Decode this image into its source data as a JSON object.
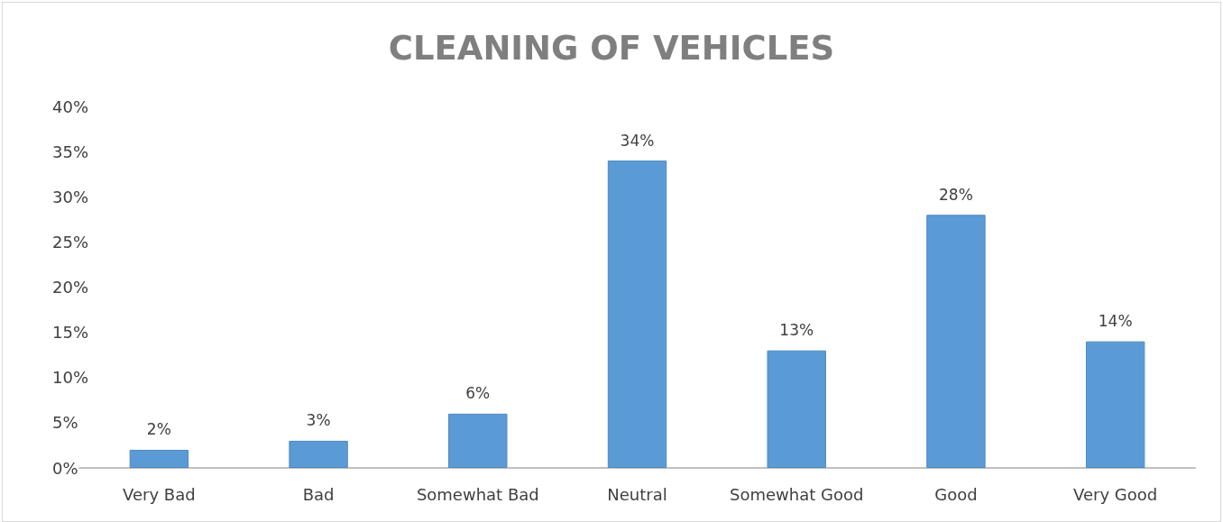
{
  "chart_data": {
    "type": "bar",
    "title": "CLEANING OF VEHICLES",
    "categories": [
      "Very Bad",
      "Bad",
      "Somewhat Bad",
      "Neutral",
      "Somewhat Good",
      "Good",
      "Very Good"
    ],
    "values": [
      2,
      3,
      6,
      34,
      13,
      28,
      14
    ],
    "value_labels": [
      "2%",
      "3%",
      "6%",
      "34%",
      "13%",
      "28%",
      "14%"
    ],
    "color": "#5b9bd5",
    "ylim": [
      0,
      40
    ],
    "yticks": [
      {
        "value": 0,
        "label": "0%"
      },
      {
        "value": 5,
        "label": "5%"
      },
      {
        "value": 10,
        "label": "10%"
      },
      {
        "value": 15,
        "label": "15%"
      },
      {
        "value": 20,
        "label": "20%"
      },
      {
        "value": 25,
        "label": "25%"
      },
      {
        "value": 30,
        "label": "30%"
      },
      {
        "value": 35,
        "label": "35%"
      },
      {
        "value": 40,
        "label": "40%"
      }
    ],
    "grid": false
  }
}
